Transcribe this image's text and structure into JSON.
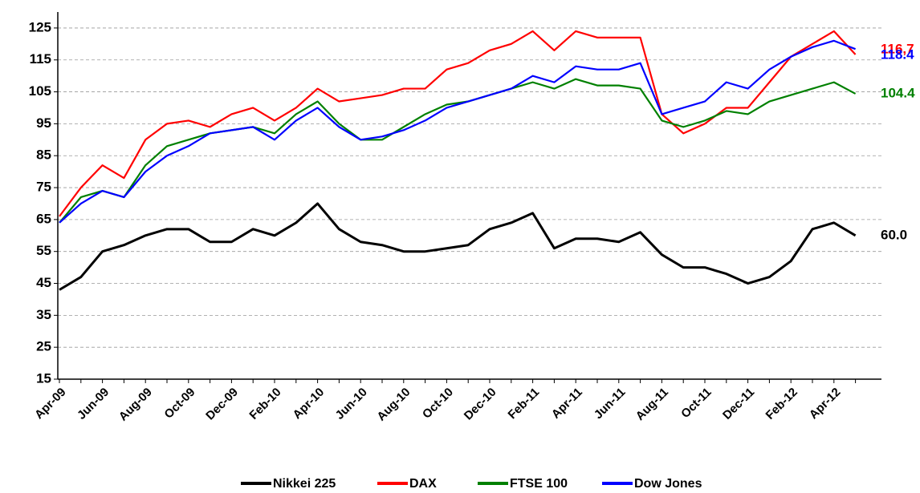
{
  "chart_data": {
    "type": "line",
    "categories": [
      "Apr-09",
      null,
      "Jun-09",
      null,
      "Aug-09",
      null,
      "Oct-09",
      null,
      "Dec-09",
      null,
      "Feb-10",
      null,
      "Apr-10",
      null,
      "Jun-10",
      null,
      "Aug-10",
      null,
      "Oct-10",
      null,
      "Dec-10",
      null,
      "Feb-11",
      null,
      "Apr-11",
      null,
      "Jun-11",
      null,
      "Aug-11",
      null,
      "Oct-11",
      null,
      "Dec-11",
      null,
      "Feb-12",
      null,
      "Apr-12",
      null
    ],
    "series": [
      {
        "name": "Nikkei 225",
        "color": "#000000",
        "values": [
          43,
          47,
          55,
          57,
          60,
          62,
          62,
          58,
          58,
          62,
          60,
          64,
          70,
          62,
          58,
          57,
          55,
          55,
          56,
          57,
          62,
          64,
          67,
          56,
          59,
          59,
          58,
          61,
          54,
          50,
          50,
          48,
          45,
          47,
          52,
          62,
          64,
          60.0
        ],
        "value_labels": [
          null,
          null,
          null,
          null,
          null,
          null,
          null,
          null,
          null,
          null,
          null,
          null,
          null,
          null,
          null,
          null,
          null,
          null,
          null,
          null,
          null,
          null,
          null,
          null,
          null,
          null,
          null,
          null,
          null,
          null,
          null,
          null,
          null,
          null,
          null,
          null,
          null,
          "60.0"
        ]
      },
      {
        "name": "DAX",
        "color": "#ff0000",
        "values": [
          66,
          75,
          82,
          78,
          90,
          95,
          96,
          94,
          98,
          100,
          96,
          100,
          106,
          102,
          103,
          104,
          106,
          106,
          112,
          114,
          118,
          120,
          124,
          118,
          124,
          122,
          122,
          122,
          98,
          92,
          95,
          100,
          100,
          108,
          116,
          120,
          124,
          116.7
        ],
        "value_labels": [
          null,
          null,
          null,
          null,
          null,
          null,
          null,
          null,
          null,
          null,
          null,
          null,
          null,
          null,
          null,
          null,
          null,
          null,
          null,
          null,
          null,
          null,
          null,
          null,
          null,
          null,
          null,
          null,
          null,
          null,
          null,
          null,
          null,
          null,
          null,
          null,
          null,
          "116,7"
        ]
      },
      {
        "name": "FTSE 100",
        "color": "#008000",
        "values": [
          64,
          72,
          74,
          72,
          82,
          88,
          90,
          92,
          93,
          94,
          92,
          98,
          102,
          95,
          90,
          90,
          94,
          98,
          101,
          102,
          104,
          106,
          108,
          106,
          109,
          107,
          107,
          106,
          96,
          94,
          96,
          99,
          98,
          102,
          104,
          106,
          108,
          104.4
        ],
        "value_labels": [
          null,
          null,
          null,
          null,
          null,
          null,
          null,
          null,
          null,
          null,
          null,
          null,
          null,
          null,
          null,
          null,
          null,
          null,
          null,
          null,
          null,
          null,
          null,
          null,
          null,
          null,
          null,
          null,
          null,
          null,
          null,
          null,
          null,
          null,
          null,
          null,
          null,
          "104.4"
        ]
      },
      {
        "name": "Dow Jones",
        "color": "#0000ff",
        "values": [
          64,
          70,
          74,
          72,
          80,
          85,
          88,
          92,
          93,
          94,
          90,
          96,
          100,
          94,
          90,
          91,
          93,
          96,
          100,
          102,
          104,
          106,
          110,
          108,
          113,
          112,
          112,
          114,
          98,
          100,
          102,
          108,
          106,
          112,
          116,
          119,
          121,
          118.4
        ],
        "value_labels": [
          null,
          null,
          null,
          null,
          null,
          null,
          null,
          null,
          null,
          null,
          null,
          null,
          null,
          null,
          null,
          null,
          null,
          null,
          null,
          null,
          null,
          null,
          null,
          null,
          null,
          null,
          null,
          null,
          null,
          null,
          null,
          null,
          null,
          null,
          null,
          null,
          null,
          "118.4"
        ]
      }
    ],
    "ylim": [
      15,
      130
    ],
    "yticks": [
      15,
      25,
      35,
      45,
      55,
      65,
      75,
      85,
      95,
      105,
      115,
      125
    ],
    "grid": true,
    "legend": "bottom"
  }
}
